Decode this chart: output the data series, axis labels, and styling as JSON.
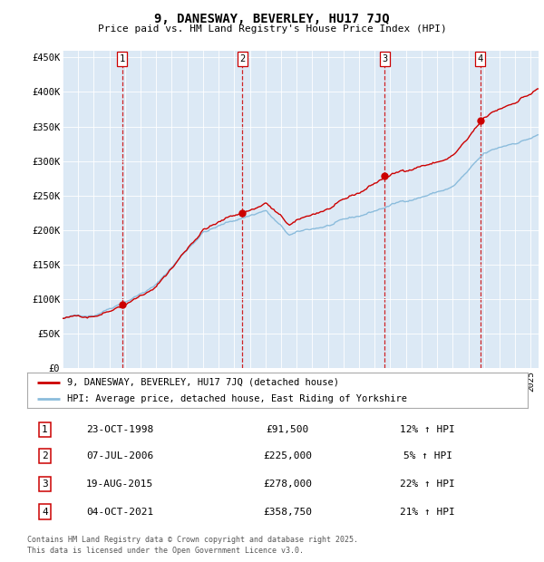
{
  "title": "9, DANESWAY, BEVERLEY, HU17 7JQ",
  "subtitle": "Price paid vs. HM Land Registry's House Price Index (HPI)",
  "background_color": "#dce9f5",
  "plot_bg_color": "#dce9f5",
  "hpi_line_color": "#8bbcdc",
  "price_line_color": "#cc0000",
  "vline_color": "#cc0000",
  "ylim": [
    0,
    460000
  ],
  "yticks": [
    0,
    50000,
    100000,
    150000,
    200000,
    250000,
    300000,
    350000,
    400000,
    450000
  ],
  "ytick_labels": [
    "£0",
    "£50K",
    "£100K",
    "£150K",
    "£200K",
    "£250K",
    "£300K",
    "£350K",
    "£400K",
    "£450K"
  ],
  "transactions": [
    {
      "num": 1,
      "date": "23-OCT-1998",
      "year": 1998.82,
      "price": 91500,
      "hpi_pct": "12%",
      "arrow": "↑"
    },
    {
      "num": 2,
      "date": "07-JUL-2006",
      "year": 2006.52,
      "price": 225000,
      "hpi_pct": "5%",
      "arrow": "↑"
    },
    {
      "num": 3,
      "date": "19-AUG-2015",
      "year": 2015.64,
      "price": 278000,
      "hpi_pct": "22%",
      "arrow": "↑"
    },
    {
      "num": 4,
      "date": "04-OCT-2021",
      "year": 2021.76,
      "price": 358750,
      "hpi_pct": "21%",
      "arrow": "↑"
    }
  ],
  "legend_property_label": "9, DANESWAY, BEVERLEY, HU17 7JQ (detached house)",
  "legend_hpi_label": "HPI: Average price, detached house, East Riding of Yorkshire",
  "footer_line1": "Contains HM Land Registry data © Crown copyright and database right 2025.",
  "footer_line2": "This data is licensed under the Open Government Licence v3.0.",
  "xstart": 1995,
  "xend": 2025.5
}
